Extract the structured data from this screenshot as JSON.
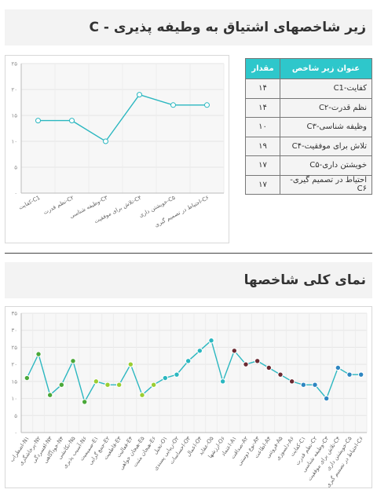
{
  "section1": {
    "title": "زیر شاخصهای اشتیاق به وطیفه پذیری - C"
  },
  "section2": {
    "title": "نمای کلی شاخصها"
  },
  "table": {
    "headers": {
      "name": "عنوان زیر شاخص",
      "value": "مقدار"
    },
    "rows": [
      {
        "name": "کفایت-C1",
        "value": "۱۴"
      },
      {
        "name": "نظم قدرت-C۲",
        "value": "۱۴"
      },
      {
        "name": "وظیفه شناسی-C۳",
        "value": "۱۰"
      },
      {
        "name": "تلاش برای موفقیت-C۴",
        "value": "۱۹"
      },
      {
        "name": "خویشتن داری-C۵",
        "value": "۱۷"
      },
      {
        "name": "احتیاط در تصمیم گیری-C۶",
        "value": "۱۷"
      }
    ]
  },
  "chart_data": [
    {
      "type": "line",
      "ylim": [
        0,
        25
      ],
      "yticks": [
        0,
        5,
        10,
        15,
        20,
        25
      ],
      "ytick_labels": [
        "۰",
        "۵",
        "۱۰",
        "۱۵",
        "۲۰",
        "۲۵"
      ],
      "grid": true,
      "color": "#2bb7c0",
      "categories": [
        "کفایت-C1",
        "نظم قدرت-C۲",
        "وظیفه شناسی-C۳",
        "تلاش برای موفقیت-C۴",
        "خویشتن داری-C۵",
        "احتیاط در تصمیم گیری-C۶"
      ],
      "values": [
        14,
        14,
        10,
        19,
        17,
        17
      ]
    },
    {
      "type": "line",
      "ylim": [
        0,
        35
      ],
      "yticks": [
        0,
        5,
        10,
        15,
        20,
        25,
        30,
        35
      ],
      "ytick_labels": [
        "۰",
        "۵",
        "۱۰",
        "۱۵",
        "۲۰",
        "۲۵",
        "۳۰",
        "۳۵"
      ],
      "grid": true,
      "line_color": "#2bb7c0",
      "categories": [
        "اضطراب-N۱",
        "پرخاشگری-N۲",
        "افسردگی-N۳",
        "خودآگاهی-N۴",
        "تکانشی-N۵",
        "آسیب پذیری-N۶",
        "صمیمیت-E۱",
        "جمع گرایی-E۲",
        "قاطعیت-E۳",
        "فعالیت-E۴",
        "هیجان خواهی-E۵",
        "هیجان مثبت-E۶",
        "تخیل-O۱",
        "زیبایی پسندی-O۲",
        "احساسات-O۳",
        "اعمال-O۴",
        "عقاید-O۵",
        "ارزشها-O۶",
        "اعتماد-A۱",
        "صداقت-A۲",
        "نوع دوستی-A۳",
        "اطاعت-A۴",
        "فروتنی-A۵",
        "دلسوزی-A۶",
        "کفایت-C۱",
        "نظم قدرت-C۲",
        "وظیفه شناسی-C۳",
        "تلاش برای موفقیت-C۴",
        "خویشتن داری-C۵",
        "احتیاط در تصمیم گیری-C۶"
      ],
      "values": [
        16,
        23,
        11,
        14,
        21,
        9,
        15,
        14,
        14,
        20,
        11,
        14,
        16,
        17,
        21,
        24,
        27,
        15,
        24,
        20,
        21,
        19,
        17,
        15,
        14,
        14,
        10,
        19,
        17,
        17
      ],
      "point_colors": [
        "#4aa83a",
        "#4aa83a",
        "#4aa83a",
        "#4aa83a",
        "#4aa83a",
        "#4aa83a",
        "#9acd32",
        "#9acd32",
        "#9acd32",
        "#9acd32",
        "#9acd32",
        "#9acd32",
        "#2bb7c0",
        "#2bb7c0",
        "#2bb7c0",
        "#2bb7c0",
        "#2bb7c0",
        "#2bb7c0",
        "#6b2a32",
        "#6b2a32",
        "#6b2a32",
        "#6b2a32",
        "#6b2a32",
        "#6b2a32",
        "#2e86c1",
        "#2e86c1",
        "#2e86c1",
        "#2e86c1",
        "#2e86c1",
        "#2e86c1"
      ]
    }
  ]
}
